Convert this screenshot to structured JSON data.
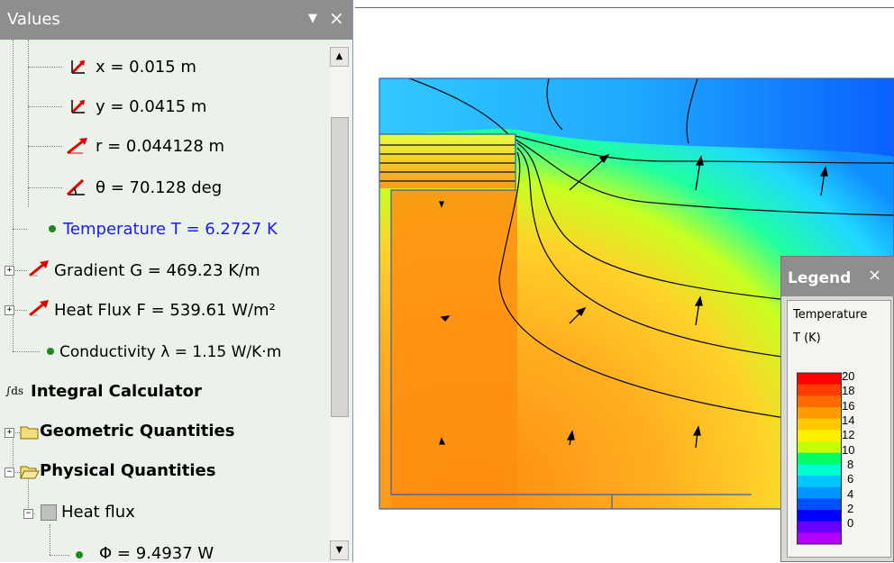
{
  "panel": {
    "title": "Values",
    "dropdown_glyph": "▼",
    "close_glyph": "×"
  },
  "tree": {
    "x_label": "x = 0.015 m",
    "y_label": "y = 0.0415 m",
    "r_label": "r = 0.044128 m",
    "theta_label": "θ = 70.128 deg",
    "temperature_label": "Temperature T = 6.2727 K",
    "gradient_label": "Gradient G = 469.23 K/m",
    "heatflux_label": "Heat Flux F = 539.61 W/m²",
    "conductivity_label": "Conductivity λ = 1.15 W/K·m",
    "integral_calculator_label": "Integral Calculator",
    "integral_icon_text": "∫ds",
    "geometric_label": "Geometric Quantities",
    "physical_label": "Physical Quantities",
    "heatflux_node_label": "Heat flux",
    "phi_label": "Φ = 9.4937 W"
  },
  "scrollbar": {
    "up_glyph": "▲",
    "down_glyph": "▼"
  },
  "legend": {
    "title": "Legend",
    "close_glyph": "×",
    "quantity": "Temperature",
    "unit": "T (K)",
    "ticks": [
      "20",
      "18",
      "16",
      "14",
      "12",
      "10",
      "8",
      "6",
      "4",
      "2",
      "0"
    ],
    "colors": [
      "#ff0000",
      "#ff3c00",
      "#ff6a00",
      "#ff9a00",
      "#ffc800",
      "#fff000",
      "#c8ff00",
      "#00ff60",
      "#00ffd0",
      "#00c8ff",
      "#0096ff",
      "#0050ff",
      "#0000ff",
      "#6a00ff",
      "#b400ff"
    ],
    "accent_colors": {
      "hot": "#ff8c00",
      "cold": "#0064ff"
    }
  },
  "icons": {
    "coord_x_icon": "coordinate-x-icon",
    "coord_y_icon": "coordinate-y-icon",
    "radius_icon": "radius-vector-icon",
    "angle_icon": "angle-icon",
    "vector_icon": "vector-arrow-icon",
    "folder_icon": "folder-icon"
  }
}
